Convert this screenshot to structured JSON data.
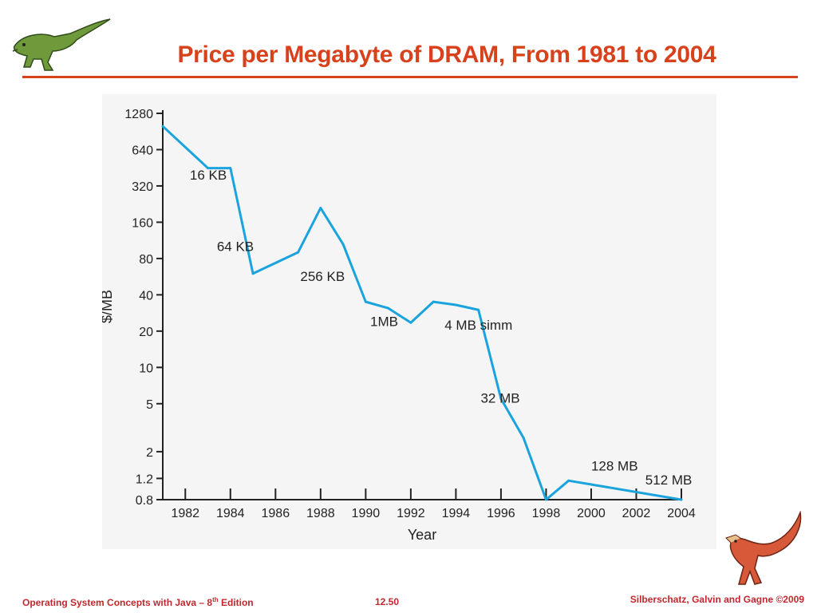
{
  "slide": {
    "title": "Price per Megabyte of DRAM, From 1981 to 2004"
  },
  "footer": {
    "left_pre": "Operating System Concepts  with Java – 8",
    "left_sup": "th",
    "left_post": " Edition",
    "page": "12.50",
    "right": "Silberschatz, Galvin and Gagne ©2009"
  },
  "colors": {
    "title": "#d7411b",
    "series": "#1aa3dd",
    "footer": "#c0282e"
  },
  "chart_data": {
    "type": "line",
    "xlabel": "Year",
    "ylabel": "$/MB",
    "y_scale": "log",
    "ylim": [
      0.8,
      1280
    ],
    "xlim": [
      1981,
      2004
    ],
    "x_ticks": [
      "1982",
      "1984",
      "1986",
      "1988",
      "1990",
      "1992",
      "1994",
      "1996",
      "1998",
      "2000",
      "2002",
      "2004"
    ],
    "y_ticks": [
      "1280",
      "640",
      "320",
      "160",
      "80",
      "40",
      "20",
      "10",
      "5",
      "2",
      "1.2",
      "0.8"
    ],
    "series": [
      {
        "x": [
          1981,
          1983,
          1984,
          1985,
          1987,
          1988,
          1989,
          1990,
          1991,
          1992,
          1993,
          1994,
          1995,
          1996,
          1997,
          1998,
          1999,
          2004
        ],
        "y": [
          1000,
          450,
          450,
          60,
          90,
          210,
          105,
          35,
          31,
          23.5,
          35,
          33,
          30,
          5.5,
          2.6,
          0.8,
          1.15,
          0.8
        ]
      }
    ],
    "annotations": [
      {
        "text": "16 KB",
        "x": 1982.2,
        "y": 360
      },
      {
        "text": "64 KB",
        "x": 1983.4,
        "y": 92
      },
      {
        "text": "256 KB",
        "x": 1987.1,
        "y": 52
      },
      {
        "text": "1MB",
        "x": 1990.2,
        "y": 22
      },
      {
        "text": "4 MB simm",
        "x": 1993.5,
        "y": 20.5
      },
      {
        "text": "32 MB",
        "x": 1995.1,
        "y": 5.1
      },
      {
        "text": "128 MB",
        "x": 2000,
        "y": 1.4
      },
      {
        "text": "512 MB",
        "x": 2002.4,
        "y": 1.07
      }
    ],
    "grid": false,
    "legend": "none"
  }
}
